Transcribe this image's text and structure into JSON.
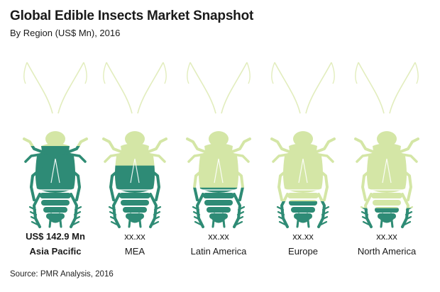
{
  "header": {
    "title": "Global Edible Insects Market Snapshot",
    "subtitle": "By Region (US$ Mn), 2016"
  },
  "colors": {
    "filled": "#2e8b76",
    "unfilled": "#d4e6a6",
    "outline": "#e2edbd"
  },
  "chart_data": {
    "type": "pictograph",
    "title": "Global Edible Insects Market Snapshot",
    "subtitle": "By Region (US$ Mn), 2016",
    "unit": "US$ Mn",
    "categories": [
      "Asia Pacific",
      "MEA",
      "Latin America",
      "Europe",
      "North America"
    ],
    "value_labels": [
      "US$ 142.9 Mn",
      "xx.xx",
      "xx.xx",
      "xx.xx",
      "xx.xx"
    ],
    "values": [
      142.9,
      null,
      null,
      null,
      null
    ],
    "fill_fraction": [
      0.85,
      0.62,
      0.36,
      0.2,
      0.12
    ],
    "emphasized": [
      true,
      false,
      false,
      false,
      false
    ]
  },
  "footer": {
    "source": "Source: PMR Analysis, 2016"
  }
}
